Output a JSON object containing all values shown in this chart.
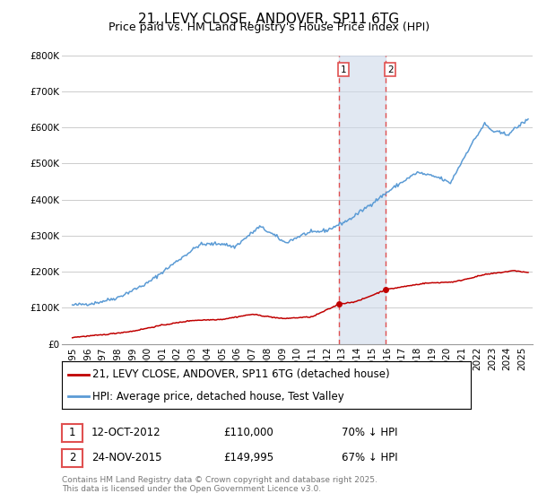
{
  "title": "21, LEVY CLOSE, ANDOVER, SP11 6TG",
  "subtitle": "Price paid vs. HM Land Registry's House Price Index (HPI)",
  "ylim": [
    0,
    800000
  ],
  "yticks": [
    0,
    100000,
    200000,
    300000,
    400000,
    500000,
    600000,
    700000,
    800000
  ],
  "ytick_labels": [
    "£0",
    "£100K",
    "£200K",
    "£300K",
    "£400K",
    "£500K",
    "£600K",
    "£700K",
    "£800K"
  ],
  "sale1_date": "12-OCT-2012",
  "sale1_price": 110000,
  "sale1_pct": "70% ↓ HPI",
  "sale2_date": "24-NOV-2015",
  "sale2_price": 149995,
  "sale2_pct": "67% ↓ HPI",
  "sale1_x": 2012.78,
  "sale2_x": 2015.9,
  "hpi_color": "#5b9bd5",
  "price_color": "#c00000",
  "vline_color": "#e05050",
  "shade_color": "#cdd9ea",
  "background_color": "#ffffff",
  "grid_color": "#cccccc",
  "footer_text": "Contains HM Land Registry data © Crown copyright and database right 2025.\nThis data is licensed under the Open Government Licence v3.0.",
  "title_fontsize": 11,
  "subtitle_fontsize": 9,
  "tick_fontsize": 7.5,
  "legend_fontsize": 8.5
}
